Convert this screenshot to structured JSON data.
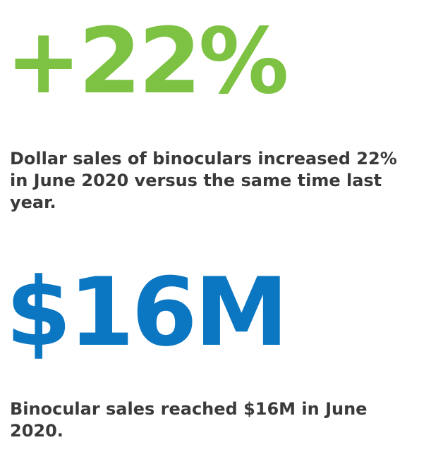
{
  "stats": [
    {
      "figure": "+22%",
      "text": "Dollar sales of binoculars increased 22% in June 2020 versus the same time last year."
    },
    {
      "figure": "$16M",
      "text": "Binocular sales reached $16M in June 2020."
    }
  ]
}
